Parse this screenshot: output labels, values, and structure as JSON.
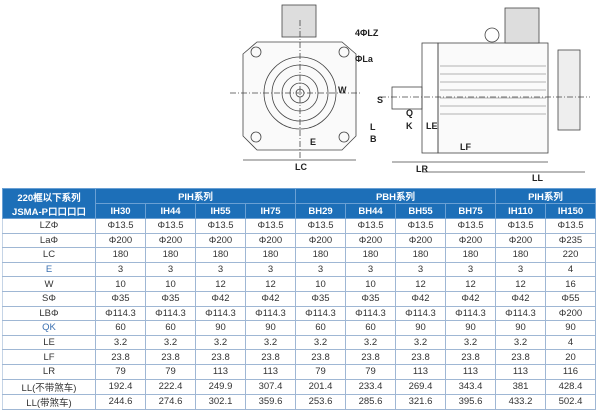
{
  "drawing": {
    "labels": {
      "lz": "4ΦLZ",
      "la": "ΦLa",
      "w": "W",
      "e": "E",
      "lc": "LC",
      "s": "S",
      "q": "Q",
      "k": "K",
      "l": "L",
      "b": "B",
      "le": "LE",
      "lf": "LF",
      "lr": "LR",
      "ll": "LL"
    }
  },
  "table": {
    "corner": [
      "220框以下系列",
      "JSMA-P口口口口"
    ],
    "groups": [
      {
        "label": "PIH系列",
        "span": 4
      },
      {
        "label": "PBH系列",
        "span": 4
      },
      {
        "label": "PIH系列",
        "span": 2
      }
    ],
    "models": [
      "IH30",
      "IH44",
      "IH55",
      "IH75",
      "BH29",
      "BH44",
      "BH55",
      "BH75",
      "IH110",
      "IH150"
    ],
    "rows": [
      {
        "label": "LZΦ",
        "values": [
          "Φ13.5",
          "Φ13.5",
          "Φ13.5",
          "Φ13.5",
          "Φ13.5",
          "Φ13.5",
          "Φ13.5",
          "Φ13.5",
          "Φ13.5",
          "Φ13.5"
        ]
      },
      {
        "label": "LaΦ",
        "values": [
          "Φ200",
          "Φ200",
          "Φ200",
          "Φ200",
          "Φ200",
          "Φ200",
          "Φ200",
          "Φ200",
          "Φ200",
          "Φ235"
        ]
      },
      {
        "label": "LC",
        "values": [
          "180",
          "180",
          "180",
          "180",
          "180",
          "180",
          "180",
          "180",
          "180",
          "220"
        ]
      },
      {
        "label": "E",
        "values": [
          "3",
          "3",
          "3",
          "3",
          "3",
          "3",
          "3",
          "3",
          "3",
          "4"
        ]
      },
      {
        "label": "W",
        "values": [
          "10",
          "10",
          "12",
          "12",
          "10",
          "10",
          "12",
          "12",
          "12",
          "16"
        ]
      },
      {
        "label": "SΦ",
        "values": [
          "Φ35",
          "Φ35",
          "Φ42",
          "Φ42",
          "Φ35",
          "Φ35",
          "Φ42",
          "Φ42",
          "Φ42",
          "Φ55"
        ]
      },
      {
        "label": "LBΦ",
        "values": [
          "Φ114.3",
          "Φ114.3",
          "Φ114.3",
          "Φ114.3",
          "Φ114.3",
          "Φ114.3",
          "Φ114.3",
          "Φ114.3",
          "Φ114.3",
          "Φ200"
        ]
      },
      {
        "label": "QK",
        "values": [
          "60",
          "60",
          "90",
          "90",
          "60",
          "60",
          "90",
          "90",
          "90",
          "90"
        ]
      },
      {
        "label": "LE",
        "values": [
          "3.2",
          "3.2",
          "3.2",
          "3.2",
          "3.2",
          "3.2",
          "3.2",
          "3.2",
          "3.2",
          "4"
        ]
      },
      {
        "label": "LF",
        "values": [
          "23.8",
          "23.8",
          "23.8",
          "23.8",
          "23.8",
          "23.8",
          "23.8",
          "23.8",
          "23.8",
          "20"
        ]
      },
      {
        "label": "LR",
        "values": [
          "79",
          "79",
          "113",
          "113",
          "79",
          "79",
          "113",
          "113",
          "113",
          "116"
        ]
      },
      {
        "label": "LL(不带煞车)",
        "values": [
          "192.4",
          "222.4",
          "249.9",
          "307.4",
          "201.4",
          "233.4",
          "269.4",
          "343.4",
          "381",
          "428.4"
        ]
      },
      {
        "label": "LL(带煞车)",
        "values": [
          "244.6",
          "274.6",
          "302.1",
          "359.6",
          "253.6",
          "285.6",
          "321.6",
          "395.6",
          "433.2",
          "502.4"
        ]
      }
    ]
  },
  "colors": {
    "header": "#1d6fb8",
    "e_label": "#3a6fb0"
  }
}
